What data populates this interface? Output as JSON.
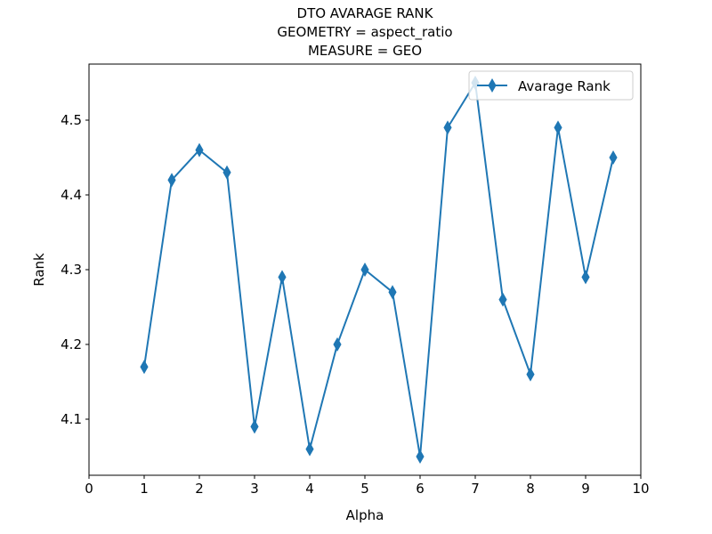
{
  "chart_data": {
    "type": "line",
    "title_lines": [
      "DTO AVARAGE RANK",
      "GEOMETRY = aspect_ratio",
      "MEASURE = GEO"
    ],
    "xlabel": "Alpha",
    "ylabel": "Rank",
    "xlim": [
      0,
      10
    ],
    "ylim": [
      4.025,
      4.575
    ],
    "xticks": [
      0,
      1,
      2,
      3,
      4,
      5,
      6,
      7,
      8,
      9,
      10
    ],
    "yticks": [
      4.1,
      4.2,
      4.3,
      4.4,
      4.5
    ],
    "xtick_labels": [
      "0",
      "1",
      "2",
      "3",
      "4",
      "5",
      "6",
      "7",
      "8",
      "9",
      "10"
    ],
    "ytick_labels": [
      "4.1",
      "4.2",
      "4.3",
      "4.4",
      "4.5"
    ],
    "grid": false,
    "legend": "top-right",
    "series": [
      {
        "name": "Avarage Rank",
        "color": "#1f77b4",
        "marker": "thin-diamond",
        "x": [
          1,
          1.5,
          2,
          2.5,
          3,
          3.5,
          4,
          4.5,
          5,
          5.5,
          6,
          6.5,
          7,
          7.5,
          8,
          8.5,
          9,
          9.5
        ],
        "y": [
          4.17,
          4.42,
          4.46,
          4.43,
          4.09,
          4.29,
          4.06,
          4.2,
          4.3,
          4.27,
          4.05,
          4.49,
          4.55,
          4.26,
          4.16,
          4.49,
          4.29,
          4.45
        ]
      }
    ]
  }
}
